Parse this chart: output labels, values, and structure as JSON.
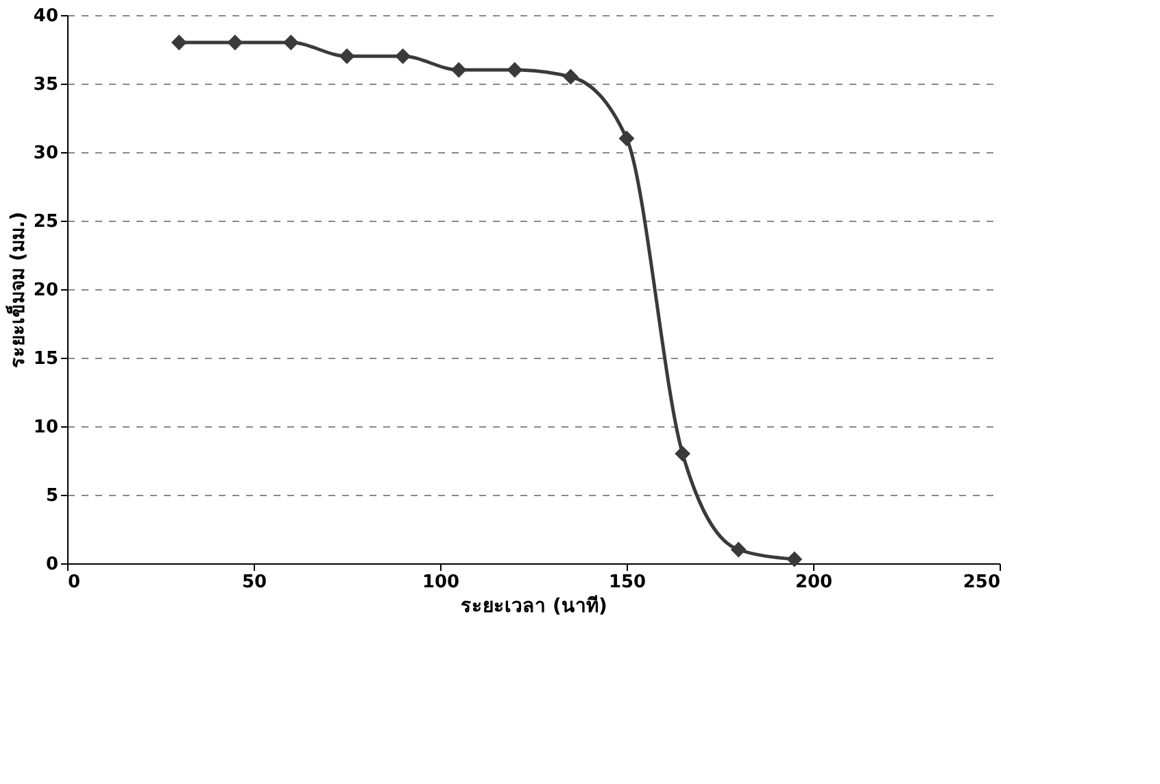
{
  "chart_data": {
    "type": "line",
    "xlabel": "ระยะเวลา (นาที)",
    "ylabel": "ระยะเข็มจม (มม.)",
    "x": [
      30,
      45,
      60,
      75,
      90,
      105,
      120,
      135,
      150,
      165,
      180,
      195
    ],
    "series": [
      {
        "color": "#3a3a3a",
        "values": [
          38,
          38,
          38,
          37,
          37,
          36,
          36,
          35.5,
          31,
          8,
          1,
          0.3
        ]
      }
    ],
    "xlim": [
      0,
      250
    ],
    "xticks": [
      0,
      50,
      100,
      150,
      200,
      250
    ],
    "ylim": [
      0,
      40
    ],
    "yticks": [
      0,
      5,
      10,
      15,
      20,
      25,
      30,
      35,
      40
    ],
    "grid": "y",
    "marker": "diamond",
    "line_style": "solid"
  }
}
